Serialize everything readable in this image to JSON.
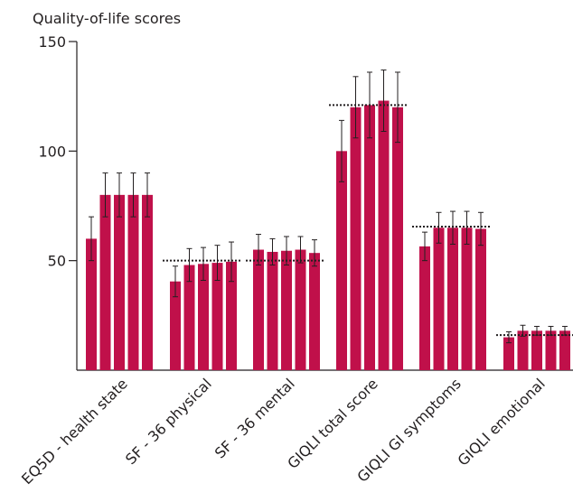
{
  "chart_data": {
    "type": "bar",
    "ylabel": "Quality-of-life scores",
    "ylim": [
      0,
      150
    ],
    "yticks": [
      50,
      100,
      150
    ],
    "categories": [
      "EQ5D - health state",
      "SF - 36 physical",
      "SF - 36 mental",
      "GIQLI total score",
      "GIQLI GI symptoms",
      "GIQLI emotional"
    ],
    "bars_per_category": 5,
    "values": [
      [
        60,
        80,
        80,
        80,
        80
      ],
      [
        40.5,
        48,
        48.5,
        49,
        49.5
      ],
      [
        55,
        54,
        54.5,
        55,
        53.5
      ],
      [
        100,
        120,
        121,
        123,
        120
      ],
      [
        56.5,
        65,
        65,
        65,
        64.5
      ],
      [
        15,
        18,
        18,
        18,
        18
      ]
    ],
    "errors": [
      [
        10,
        10,
        10,
        10,
        10
      ],
      [
        7,
        7.5,
        7.5,
        8,
        9
      ],
      [
        7,
        6,
        6.5,
        6,
        6
      ],
      [
        14,
        14,
        15,
        14,
        16
      ],
      [
        6.5,
        7,
        7.5,
        7.5,
        7.5
      ],
      [
        2.5,
        2.5,
        2,
        2,
        2
      ]
    ],
    "reference_lines": [
      null,
      50,
      50,
      121,
      65.5,
      16
    ],
    "grid": false,
    "bar_color": "#c0104a",
    "reference_line_style": "dotted"
  }
}
